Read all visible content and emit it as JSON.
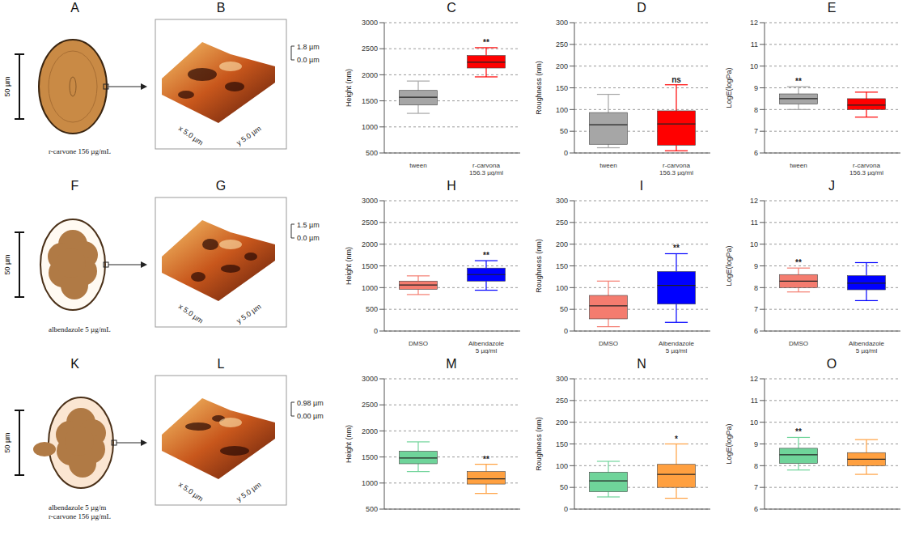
{
  "chart_data": [
    {
      "type": "box",
      "panel": "C",
      "ylabel": "Height (nm)",
      "categories": [
        "tween",
        "r-carvona 156.3 µg/ml"
      ],
      "stats": [
        {
          "low": 1260,
          "q1": 1420,
          "median": 1570,
          "q3": 1700,
          "high": 1880
        },
        {
          "low": 1960,
          "q1": 2130,
          "median": 2240,
          "q3": 2370,
          "high": 2520
        }
      ],
      "colors": [
        "#a6a6a6",
        "#ff0000"
      ],
      "ylim": [
        500,
        3000
      ],
      "yticks": [
        500,
        1000,
        1500,
        2000,
        2500,
        3000
      ],
      "grid": true,
      "annotations": [
        {
          "index": 1,
          "text": "**"
        }
      ]
    },
    {
      "type": "box",
      "panel": "D",
      "ylabel": "Roughness (nm)",
      "categories": [
        "tween",
        "r-carvona 156.3 µg/ml"
      ],
      "stats": [
        {
          "low": 12,
          "q1": 20,
          "median": 65,
          "q3": 93,
          "high": 135
        },
        {
          "low": 5,
          "q1": 18,
          "median": 67,
          "q3": 97,
          "high": 157
        }
      ],
      "colors": [
        "#a6a6a6",
        "#ff0000"
      ],
      "ylim": [
        0,
        300
      ],
      "yticks": [
        0,
        50,
        100,
        150,
        200,
        250,
        300
      ],
      "grid": true,
      "annotations": [
        {
          "index": 1,
          "text": "ns"
        }
      ]
    },
    {
      "type": "box",
      "panel": "E",
      "ylabel": "LogE(logPa)",
      "categories": [
        "tween",
        "r-carvona 156.3 µg/ml"
      ],
      "stats": [
        {
          "low": 8.0,
          "q1": 8.25,
          "median": 8.5,
          "q3": 8.72,
          "high": 9.05
        },
        {
          "low": 7.65,
          "q1": 8.0,
          "median": 8.2,
          "q3": 8.5,
          "high": 8.8
        }
      ],
      "colors": [
        "#a6a6a6",
        "#ff0000"
      ],
      "ylim": [
        6,
        12
      ],
      "yticks": [
        6,
        7,
        8,
        9,
        10,
        11,
        12
      ],
      "grid": true,
      "annotations": [
        {
          "index": 0,
          "text": "**"
        }
      ]
    },
    {
      "type": "box",
      "panel": "H",
      "ylabel": "Height (nm)",
      "categories": [
        "DMSO",
        "Albendazole 5 µg/ml"
      ],
      "stats": [
        {
          "low": 840,
          "q1": 960,
          "median": 1060,
          "q3": 1150,
          "high": 1270
        },
        {
          "low": 940,
          "q1": 1150,
          "median": 1300,
          "q3": 1450,
          "high": 1620
        }
      ],
      "colors": [
        "#f47c6f",
        "#0000ff"
      ],
      "ylim": [
        0,
        3000
      ],
      "yticks": [
        0,
        500,
        1000,
        1500,
        2000,
        2500,
        3000
      ],
      "grid": true,
      "annotations": [
        {
          "index": 1,
          "text": "**"
        }
      ]
    },
    {
      "type": "box",
      "panel": "I",
      "ylabel": "Roughness (nm)",
      "categories": [
        "DMSO",
        "Albendazole 5 µg/ml"
      ],
      "stats": [
        {
          "low": 10,
          "q1": 28,
          "median": 58,
          "q3": 82,
          "high": 115
        },
        {
          "low": 20,
          "q1": 62,
          "median": 105,
          "q3": 137,
          "high": 178
        }
      ],
      "colors": [
        "#f47c6f",
        "#0000ff"
      ],
      "ylim": [
        0,
        300
      ],
      "yticks": [
        0,
        50,
        100,
        150,
        200,
        250,
        300
      ],
      "grid": true,
      "annotations": [
        {
          "index": 1,
          "text": "**"
        }
      ]
    },
    {
      "type": "box",
      "panel": "J",
      "ylabel": "LogE(logPa)",
      "categories": [
        "DMSO",
        "Albendazole 5 µg/ml"
      ],
      "stats": [
        {
          "low": 7.8,
          "q1": 8.0,
          "median": 8.3,
          "q3": 8.6,
          "high": 8.9
        },
        {
          "low": 7.4,
          "q1": 7.9,
          "median": 8.2,
          "q3": 8.55,
          "high": 9.15
        }
      ],
      "colors": [
        "#f47c6f",
        "#0000ff"
      ],
      "ylim": [
        6,
        12
      ],
      "yticks": [
        6,
        7,
        8,
        9,
        10,
        11,
        12
      ],
      "grid": true,
      "annotations": [
        {
          "index": 0,
          "text": "**"
        }
      ]
    },
    {
      "type": "box",
      "panel": "M",
      "ylabel": "Height (nm)",
      "categories": [
        null,
        null
      ],
      "stats": [
        {
          "low": 1220,
          "q1": 1370,
          "median": 1480,
          "q3": 1610,
          "high": 1790
        },
        {
          "low": 800,
          "q1": 980,
          "median": 1080,
          "q3": 1220,
          "high": 1360
        }
      ],
      "colors": [
        "#6fd49a",
        "#ffa040"
      ],
      "ylim": [
        500,
        3000
      ],
      "yticks": [
        500,
        1000,
        1500,
        2000,
        2500,
        3000
      ],
      "grid": true,
      "annotations": [
        {
          "index": 1,
          "text": "**"
        }
      ]
    },
    {
      "type": "box",
      "panel": "N",
      "ylabel": "Roughness (nm)",
      "categories": [
        null,
        null
      ],
      "stats": [
        {
          "low": 28,
          "q1": 40,
          "median": 65,
          "q3": 85,
          "high": 110
        },
        {
          "low": 25,
          "q1": 50,
          "median": 80,
          "q3": 103,
          "high": 150
        }
      ],
      "colors": [
        "#6fd49a",
        "#ffa040"
      ],
      "ylim": [
        0,
        300
      ],
      "yticks": [
        0,
        50,
        100,
        150,
        200,
        250,
        300
      ],
      "grid": true,
      "annotations": [
        {
          "index": 1,
          "text": "*"
        }
      ]
    },
    {
      "type": "box",
      "panel": "O",
      "ylabel": "LogE(logPa)",
      "categories": [
        null,
        null
      ],
      "stats": [
        {
          "low": 7.8,
          "q1": 8.1,
          "median": 8.5,
          "q3": 8.8,
          "high": 9.3
        },
        {
          "low": 7.6,
          "q1": 8.0,
          "median": 8.3,
          "q3": 8.6,
          "high": 9.2
        }
      ],
      "colors": [
        "#6fd49a",
        "#ffa040"
      ],
      "ylim": [
        6,
        12
      ],
      "yticks": [
        6,
        7,
        8,
        9,
        10,
        11,
        12
      ],
      "grid": true,
      "annotations": [
        {
          "index": 0,
          "text": "**"
        }
      ]
    }
  ],
  "schematics": [
    {
      "panel": "A",
      "scale": "50 µm",
      "caption": [
        "r-carvone 156 µg/mL"
      ]
    },
    {
      "panel": "F",
      "scale": "50 µm",
      "caption": [
        "albendazole 5 µg/mL"
      ]
    },
    {
      "panel": "K",
      "scale": "50 µm",
      "caption": [
        "albendazole  5 µg/m",
        "r-carvone 156 µg/mL"
      ]
    }
  ],
  "afm": [
    {
      "panel": "B",
      "z_top": "1.8 µm",
      "z_bottom": "0.0 µm",
      "x_label": "x 5.0 µm",
      "y_label": "y 5.0 µm"
    },
    {
      "panel": "G",
      "z_top": "1.5 µm",
      "z_bottom": "0.0 µm",
      "x_label": "x 5.0 µm",
      "y_label": "y 5.0 µm"
    },
    {
      "panel": "L",
      "z_top": "0.98 µm",
      "z_bottom": "0.00 µm",
      "x_label": "x 5.0 µm",
      "y_label": "y 5.0 µm"
    }
  ]
}
